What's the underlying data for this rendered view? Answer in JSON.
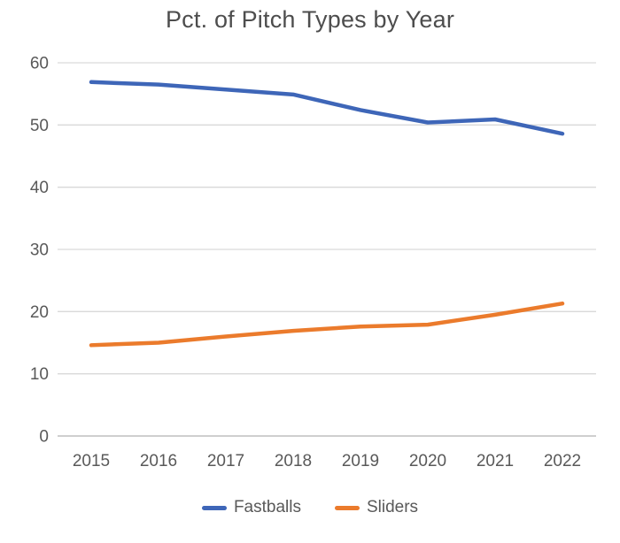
{
  "title": "Pct. of Pitch Types by Year",
  "chart_data": {
    "type": "line",
    "title": "Pct. of Pitch Types by Year",
    "categories": [
      "2015",
      "2016",
      "2017",
      "2018",
      "2019",
      "2020",
      "2021",
      "2022"
    ],
    "series": [
      {
        "name": "Fastballs",
        "color": "#3e66b8",
        "values": [
          56.9,
          56.5,
          55.7,
          54.9,
          52.4,
          50.4,
          50.9,
          48.6
        ]
      },
      {
        "name": "Sliders",
        "color": "#eb7b2c",
        "values": [
          14.6,
          15.0,
          16.0,
          16.9,
          17.6,
          17.9,
          19.5,
          21.3
        ]
      }
    ],
    "xlabel": "",
    "ylabel": "",
    "ylim": [
      0,
      60
    ],
    "yticks": [
      0,
      10,
      20,
      30,
      40,
      50,
      60
    ],
    "grid": true,
    "legend_position": "bottom"
  },
  "colors": {
    "background": "#ffffff",
    "title_text": "#4d4d4d",
    "axis_labels": "#595959",
    "gridline": "#d9d9d9",
    "axis_line": "#bfbfbf",
    "fastballs_line": "#3e66b8",
    "sliders_line": "#eb7b2c"
  }
}
